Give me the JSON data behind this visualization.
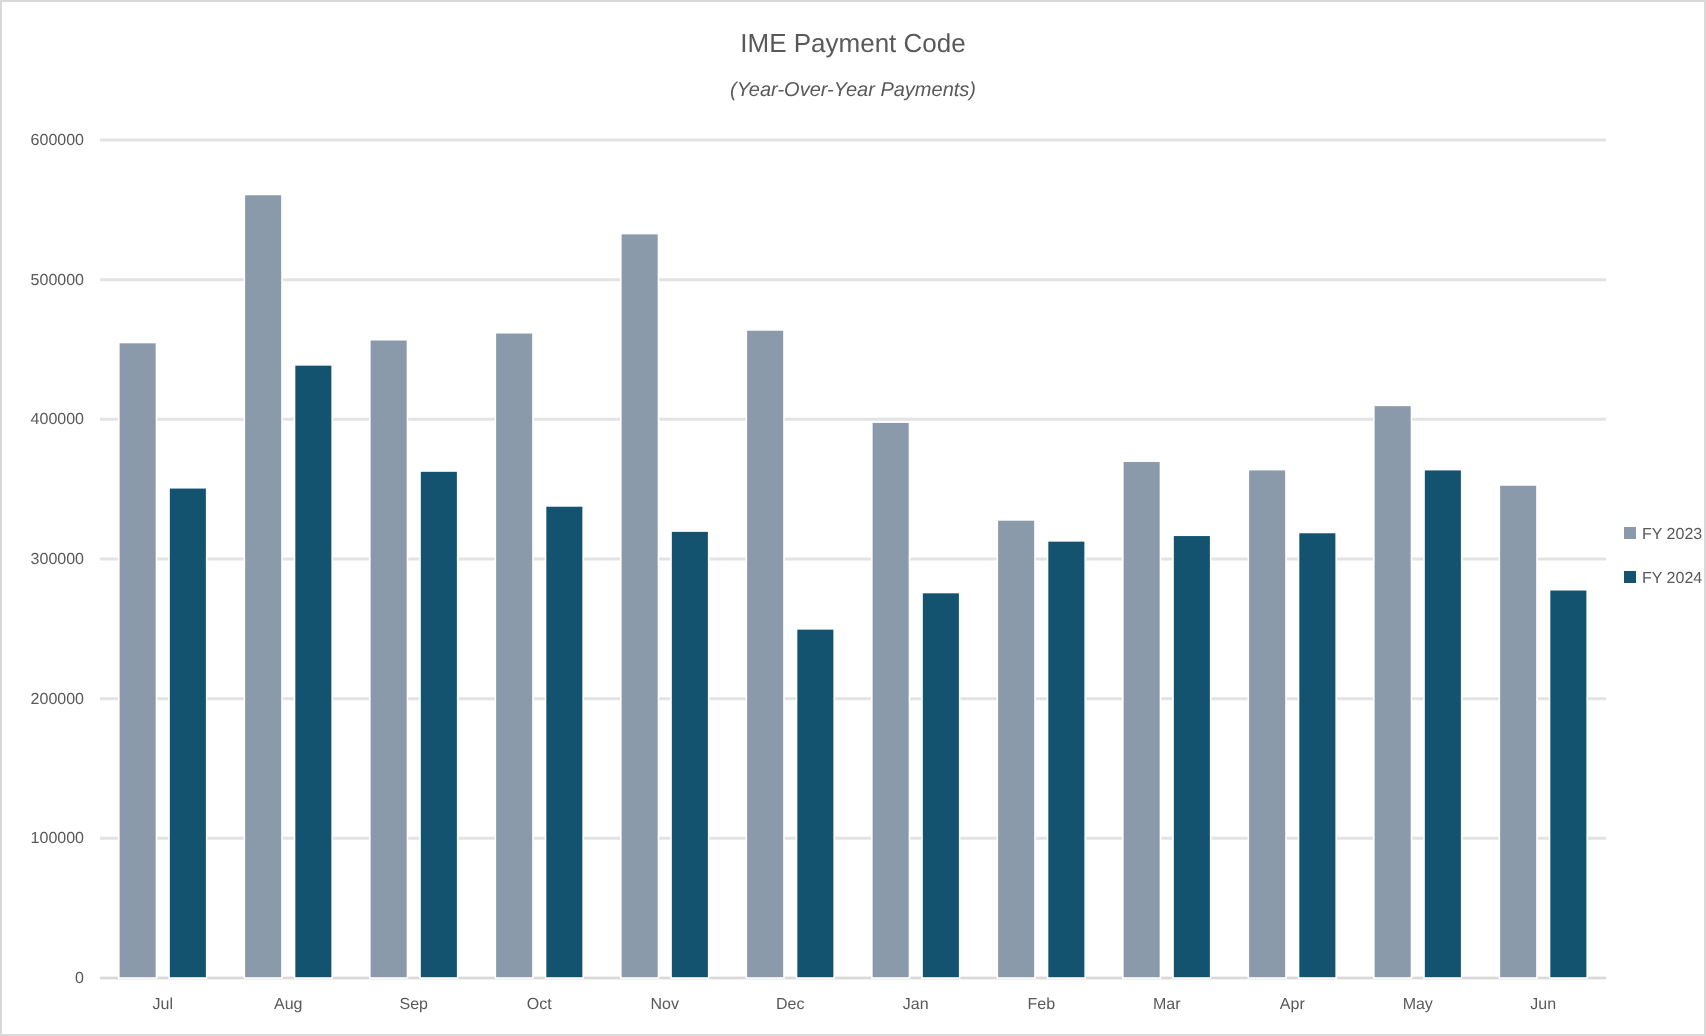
{
  "chart_data": {
    "type": "bar",
    "title": "IME Payment Code",
    "subtitle": "(Year-Over-Year Payments)",
    "categories": [
      "Jul",
      "Aug",
      "Sep",
      "Oct",
      "Nov",
      "Dec",
      "Jan",
      "Feb",
      "Mar",
      "Apr",
      "May",
      "Jun"
    ],
    "series": [
      {
        "name": "FY 2023",
        "color": "#8a9aab",
        "values": [
          455000,
          561000,
          457000,
          462000,
          533000,
          464000,
          398000,
          328000,
          370000,
          364000,
          410000,
          353000
        ]
      },
      {
        "name": "FY 2024",
        "color": "#14536f",
        "values": [
          351000,
          439000,
          363000,
          338000,
          320000,
          250000,
          276000,
          313000,
          317000,
          319000,
          364000,
          278000
        ]
      }
    ],
    "ylim": [
      0,
      600000
    ],
    "yticks": [
      0,
      100000,
      200000,
      300000,
      400000,
      500000,
      600000
    ],
    "grid": "y",
    "legend": "right"
  }
}
